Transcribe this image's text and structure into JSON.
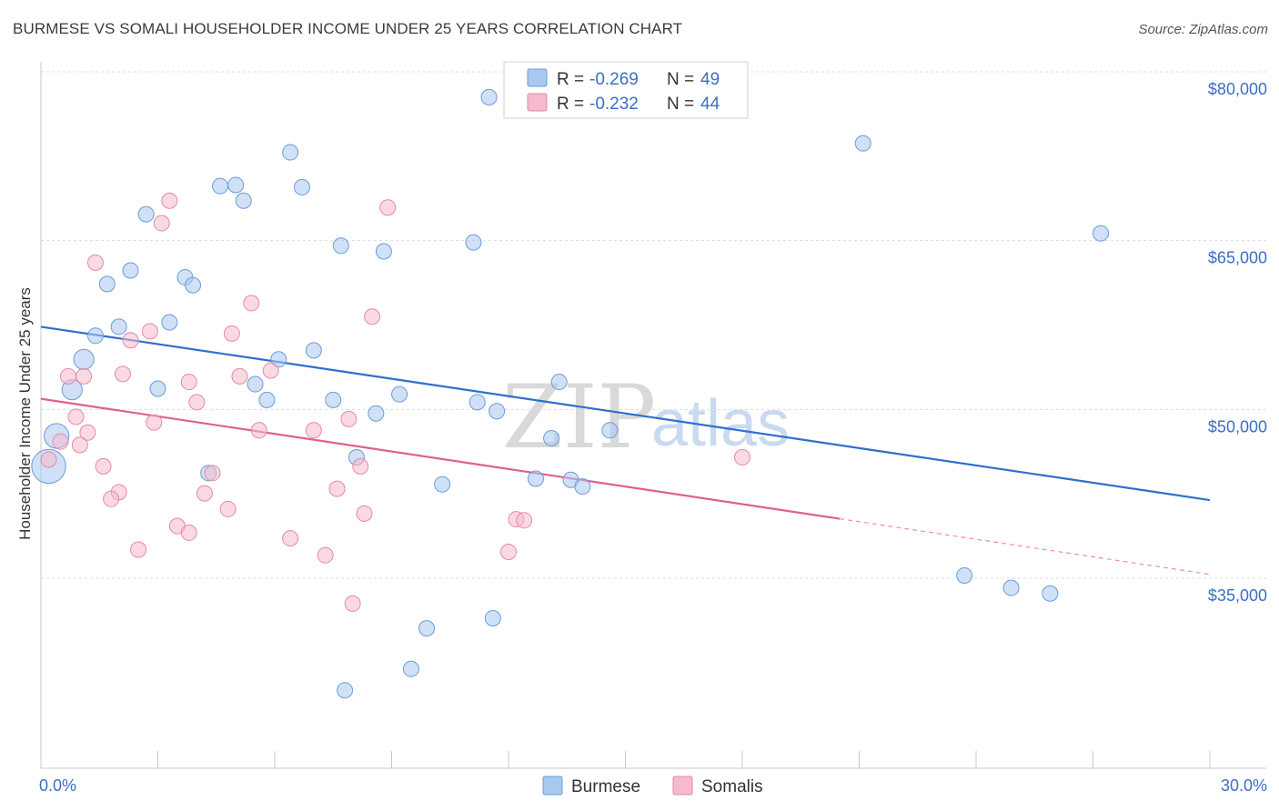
{
  "title": "BURMESE VS SOMALI HOUSEHOLDER INCOME UNDER 25 YEARS CORRELATION CHART",
  "source": "Source: ZipAtlas.com",
  "watermark": {
    "zip": "ZIP",
    "atlas": "atlas"
  },
  "legend": {
    "rows": [
      {
        "r_label": "R =",
        "r_value": "-0.269",
        "n_label": "N =",
        "n_value": "49",
        "color": "#a9c8f0",
        "stroke": "#6b9bd8"
      },
      {
        "r_label": "R =",
        "r_value": "-0.232",
        "n_label": "N =",
        "n_value": "44",
        "color": "#f7b9cc",
        "stroke": "#e48aa6"
      }
    ]
  },
  "bottom_legend": [
    {
      "label": "Burmese",
      "color": "#a9c8f0",
      "stroke": "#6b9bd8"
    },
    {
      "label": "Somalis",
      "color": "#f7b9cc",
      "stroke": "#e48aa6"
    }
  ],
  "chart_data": {
    "type": "scatter",
    "ylabel": "Householder Income Under 25 years",
    "xlim": [
      0,
      30
    ],
    "ylim": [
      22000,
      82500
    ],
    "x_tick_labels": [
      {
        "x": 0,
        "label": "0.0%"
      },
      {
        "x": 30,
        "label": "30.0%"
      }
    ],
    "x_minor_ticks": [
      0,
      3,
      6,
      9,
      12,
      15,
      18,
      21,
      24,
      27,
      30
    ],
    "y_ticks": [
      {
        "y": 80000,
        "label": "$80,000"
      },
      {
        "y": 65000,
        "label": "$65,000"
      },
      {
        "y": 50000,
        "label": "$50,000"
      },
      {
        "y": 35000,
        "label": "$35,000"
      }
    ],
    "series": [
      {
        "name": "Burmese",
        "color": "#a9c8f0",
        "stroke": "#6b9bd8",
        "trend": {
          "x0": 0,
          "y0": 58800,
          "x1": 30,
          "y1": 43400,
          "dashed_from": null,
          "line_color": "#2d6fcf"
        },
        "points": [
          {
            "x": 11.5,
            "y": 79200,
            "s": 1
          },
          {
            "x": 21.1,
            "y": 75100,
            "s": 1
          },
          {
            "x": 6.4,
            "y": 74300,
            "s": 1
          },
          {
            "x": 4.6,
            "y": 71300,
            "s": 1
          },
          {
            "x": 5.0,
            "y": 71400,
            "s": 1
          },
          {
            "x": 6.7,
            "y": 71200,
            "s": 1
          },
          {
            "x": 5.2,
            "y": 70000,
            "s": 1
          },
          {
            "x": 2.7,
            "y": 68800,
            "s": 1
          },
          {
            "x": 27.2,
            "y": 67100,
            "s": 1
          },
          {
            "x": 7.7,
            "y": 66000,
            "s": 1
          },
          {
            "x": 11.1,
            "y": 66300,
            "s": 1
          },
          {
            "x": 8.8,
            "y": 65500,
            "s": 1
          },
          {
            "x": 2.3,
            "y": 63800,
            "s": 1
          },
          {
            "x": 3.7,
            "y": 63200,
            "s": 1
          },
          {
            "x": 1.7,
            "y": 62600,
            "s": 1
          },
          {
            "x": 3.9,
            "y": 62500,
            "s": 1
          },
          {
            "x": 3.3,
            "y": 59200,
            "s": 1
          },
          {
            "x": 2.0,
            "y": 58800,
            "s": 1
          },
          {
            "x": 1.4,
            "y": 58000,
            "s": 1
          },
          {
            "x": 7.0,
            "y": 56700,
            "s": 1
          },
          {
            "x": 1.1,
            "y": 55900,
            "s": 1.3
          },
          {
            "x": 6.1,
            "y": 55900,
            "s": 1
          },
          {
            "x": 13.3,
            "y": 53900,
            "s": 1
          },
          {
            "x": 5.5,
            "y": 53700,
            "s": 1
          },
          {
            "x": 0.8,
            "y": 53200,
            "s": 1.3
          },
          {
            "x": 3.0,
            "y": 53300,
            "s": 1
          },
          {
            "x": 9.2,
            "y": 52800,
            "s": 1
          },
          {
            "x": 5.8,
            "y": 52300,
            "s": 1
          },
          {
            "x": 7.5,
            "y": 52300,
            "s": 1
          },
          {
            "x": 11.2,
            "y": 52100,
            "s": 1
          },
          {
            "x": 11.7,
            "y": 51300,
            "s": 1
          },
          {
            "x": 8.6,
            "y": 51100,
            "s": 1
          },
          {
            "x": 14.6,
            "y": 49600,
            "s": 1
          },
          {
            "x": 0.4,
            "y": 49100,
            "s": 1.6
          },
          {
            "x": 13.1,
            "y": 48900,
            "s": 1
          },
          {
            "x": 0.2,
            "y": 46400,
            "s": 2.2
          },
          {
            "x": 8.1,
            "y": 47200,
            "s": 1
          },
          {
            "x": 4.3,
            "y": 45800,
            "s": 1
          },
          {
            "x": 12.7,
            "y": 45300,
            "s": 1
          },
          {
            "x": 13.6,
            "y": 45200,
            "s": 1
          },
          {
            "x": 10.3,
            "y": 44800,
            "s": 1
          },
          {
            "x": 13.9,
            "y": 44600,
            "s": 1
          },
          {
            "x": 23.7,
            "y": 36700,
            "s": 1
          },
          {
            "x": 24.9,
            "y": 35600,
            "s": 1
          },
          {
            "x": 25.9,
            "y": 35100,
            "s": 1
          },
          {
            "x": 11.6,
            "y": 32900,
            "s": 1
          },
          {
            "x": 9.9,
            "y": 32000,
            "s": 1
          },
          {
            "x": 9.5,
            "y": 28400,
            "s": 1
          },
          {
            "x": 7.8,
            "y": 26500,
            "s": 1
          }
        ]
      },
      {
        "name": "Somalis",
        "color": "#f7b9cc",
        "stroke": "#e48aa6",
        "trend": {
          "x0": 0,
          "y0": 52400,
          "x1": 30,
          "y1": 36800,
          "dashed_from": 20.5,
          "line_color": "#e0608c"
        },
        "points": [
          {
            "x": 3.3,
            "y": 70000,
            "s": 1
          },
          {
            "x": 8.9,
            "y": 69400,
            "s": 1
          },
          {
            "x": 3.1,
            "y": 68000,
            "s": 1
          },
          {
            "x": 1.4,
            "y": 64500,
            "s": 1
          },
          {
            "x": 5.4,
            "y": 60900,
            "s": 1
          },
          {
            "x": 8.5,
            "y": 59700,
            "s": 1
          },
          {
            "x": 2.8,
            "y": 58400,
            "s": 1
          },
          {
            "x": 4.9,
            "y": 58200,
            "s": 1
          },
          {
            "x": 2.3,
            "y": 57600,
            "s": 1
          },
          {
            "x": 5.9,
            "y": 54900,
            "s": 1
          },
          {
            "x": 2.1,
            "y": 54600,
            "s": 1
          },
          {
            "x": 0.7,
            "y": 54400,
            "s": 1
          },
          {
            "x": 1.1,
            "y": 54400,
            "s": 1
          },
          {
            "x": 5.1,
            "y": 54400,
            "s": 1
          },
          {
            "x": 3.8,
            "y": 53900,
            "s": 1
          },
          {
            "x": 4.0,
            "y": 52100,
            "s": 1
          },
          {
            "x": 0.9,
            "y": 50800,
            "s": 1
          },
          {
            "x": 7.9,
            "y": 50600,
            "s": 1
          },
          {
            "x": 2.9,
            "y": 50300,
            "s": 1
          },
          {
            "x": 1.2,
            "y": 49400,
            "s": 1
          },
          {
            "x": 5.6,
            "y": 49600,
            "s": 1
          },
          {
            "x": 7.0,
            "y": 49600,
            "s": 1
          },
          {
            "x": 0.5,
            "y": 48600,
            "s": 1
          },
          {
            "x": 1.0,
            "y": 48300,
            "s": 1
          },
          {
            "x": 0.2,
            "y": 47000,
            "s": 1
          },
          {
            "x": 18.0,
            "y": 47200,
            "s": 1
          },
          {
            "x": 1.6,
            "y": 46400,
            "s": 1
          },
          {
            "x": 8.2,
            "y": 46400,
            "s": 1
          },
          {
            "x": 4.4,
            "y": 45800,
            "s": 1
          },
          {
            "x": 7.6,
            "y": 44400,
            "s": 1
          },
          {
            "x": 2.0,
            "y": 44100,
            "s": 1
          },
          {
            "x": 4.2,
            "y": 44000,
            "s": 1
          },
          {
            "x": 1.8,
            "y": 43500,
            "s": 1
          },
          {
            "x": 4.8,
            "y": 42600,
            "s": 1
          },
          {
            "x": 8.3,
            "y": 42200,
            "s": 1
          },
          {
            "x": 12.2,
            "y": 41700,
            "s": 1
          },
          {
            "x": 12.4,
            "y": 41600,
            "s": 1
          },
          {
            "x": 3.5,
            "y": 41100,
            "s": 1
          },
          {
            "x": 3.8,
            "y": 40500,
            "s": 1
          },
          {
            "x": 6.4,
            "y": 40000,
            "s": 1
          },
          {
            "x": 2.5,
            "y": 39000,
            "s": 1
          },
          {
            "x": 12.0,
            "y": 38800,
            "s": 1
          },
          {
            "x": 7.3,
            "y": 38500,
            "s": 1
          },
          {
            "x": 8.0,
            "y": 34200,
            "s": 1
          }
        ]
      }
    ]
  }
}
